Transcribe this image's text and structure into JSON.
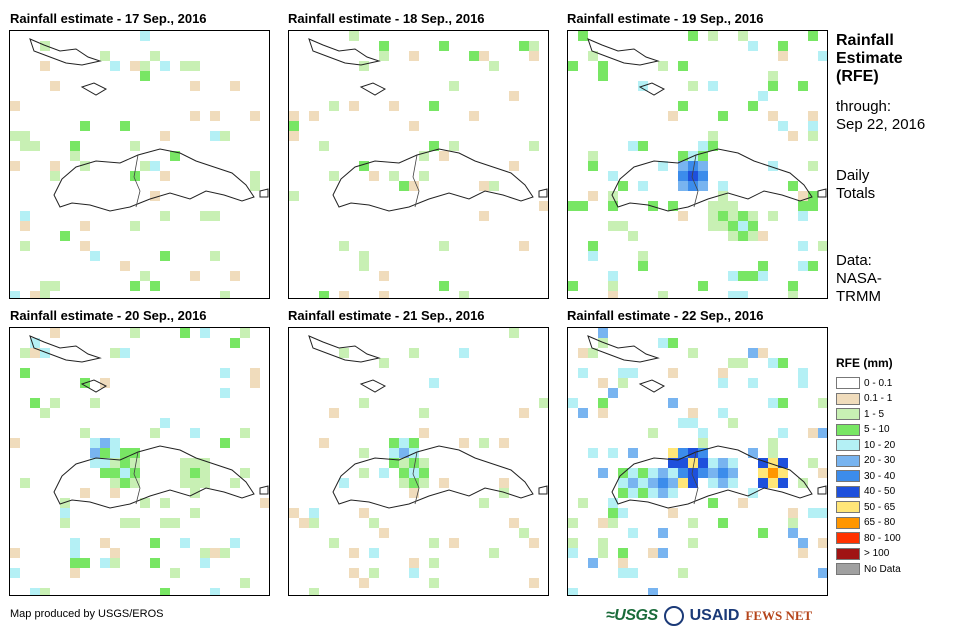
{
  "panels": [
    {
      "title": "Rainfall estimate - 17 Sep., 2016"
    },
    {
      "title": "Rainfall estimate - 18 Sep., 2016"
    },
    {
      "title": "Rainfall estimate - 19 Sep., 2016"
    },
    {
      "title": "Rainfall estimate - 20 Sep., 2016"
    },
    {
      "title": "Rainfall estimate - 21 Sep., 2016"
    },
    {
      "title": "Rainfall estimate - 22 Sep., 2016"
    }
  ],
  "side": {
    "title_line1": "Rainfall",
    "title_line2": "Estimate",
    "title_line3": "(RFE)",
    "through_label": "through:",
    "through_date": "Sep 22, 2016",
    "totals_line1": "Daily",
    "totals_line2": "Totals",
    "data_label": "Data:",
    "data_source_line1": "NASA-",
    "data_source_line2": "TRMM"
  },
  "legend": {
    "title": "RFE (mm)",
    "items": [
      {
        "label": "0 - 0.1",
        "color": "#ffffff"
      },
      {
        "label": "0.1 - 1",
        "color": "#f0dcbc"
      },
      {
        "label": "1 - 5",
        "color": "#c8f0b4"
      },
      {
        "label": "5 - 10",
        "color": "#78e664"
      },
      {
        "label": "10 - 20",
        "color": "#b4f0f5"
      },
      {
        "label": "20 - 30",
        "color": "#78b4f0"
      },
      {
        "label": "30 - 40",
        "color": "#3c8ceb"
      },
      {
        "label": "40 - 50",
        "color": "#1e50dc"
      },
      {
        "label": "50 - 65",
        "color": "#ffe678"
      },
      {
        "label": "65 - 80",
        "color": "#ff9600"
      },
      {
        "label": "80 - 100",
        "color": "#ff3200"
      },
      {
        "label": "> 100",
        "color": "#a01414"
      },
      {
        "label": "No Data",
        "color": "#a0a0a0"
      }
    ]
  },
  "credit": "Map produced by USGS/EROS",
  "logos": {
    "usgs": "≈USGS",
    "usaid": "USAID",
    "fews": "FEWS NET"
  }
}
